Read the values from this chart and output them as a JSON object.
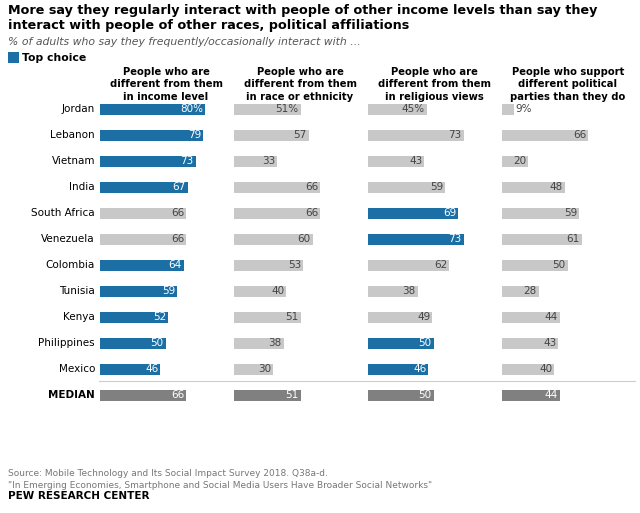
{
  "title": "More say they regularly interact with people of other income levels than say they\ninteract with people of other races, political affiliations",
  "subtitle": "% of adults who say they frequently/occasionally interact with ...",
  "legend_label": "Top choice",
  "col_headers": [
    "People who are\ndifferent from them\nin income level",
    "People who are\ndifferent from them\nin race or ethnicity",
    "People who are\ndifferent from them\nin religious views",
    "People who support\ndifferent political\nparties than they do"
  ],
  "countries": [
    "Jordan",
    "Lebanon",
    "Vietnam",
    "India",
    "South Africa",
    "Venezuela",
    "Colombia",
    "Tunisia",
    "Kenya",
    "Philippines",
    "Mexico",
    "MEDIAN"
  ],
  "data": [
    [
      80,
      51,
      45,
      9
    ],
    [
      79,
      57,
      73,
      66
    ],
    [
      73,
      33,
      43,
      20
    ],
    [
      67,
      66,
      59,
      48
    ],
    [
      66,
      66,
      69,
      59
    ],
    [
      66,
      60,
      73,
      61
    ],
    [
      64,
      53,
      62,
      50
    ],
    [
      59,
      40,
      38,
      28
    ],
    [
      52,
      51,
      49,
      44
    ],
    [
      50,
      38,
      50,
      43
    ],
    [
      46,
      30,
      46,
      40
    ],
    [
      66,
      51,
      50,
      44
    ]
  ],
  "top_choice": [
    [
      true,
      false,
      false,
      false
    ],
    [
      true,
      false,
      false,
      false
    ],
    [
      true,
      false,
      false,
      false
    ],
    [
      true,
      false,
      false,
      false
    ],
    [
      false,
      false,
      true,
      false
    ],
    [
      false,
      false,
      true,
      false
    ],
    [
      true,
      false,
      false,
      false
    ],
    [
      true,
      false,
      false,
      false
    ],
    [
      true,
      false,
      false,
      false
    ],
    [
      true,
      false,
      true,
      false
    ],
    [
      true,
      false,
      true,
      false
    ],
    [
      false,
      false,
      false,
      false
    ]
  ],
  "blue_color": "#1c6fa5",
  "gray_color": "#c8c8c8",
  "median_color": "#808080",
  "source_text": "Source: Mobile Technology and Its Social Impact Survey 2018. Q38a-d.\n\"In Emerging Economies, Smartphone and Social Media Users Have Broader Social Networks\"",
  "footer": "PEW RESEARCH CENTER"
}
